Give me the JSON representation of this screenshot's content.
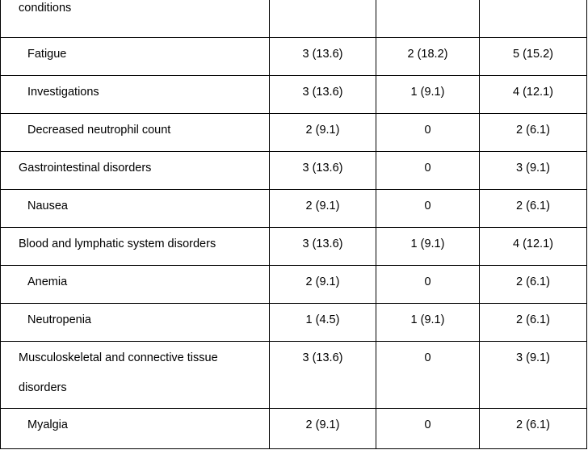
{
  "rows": [
    {
      "term": "conditions",
      "c1": "",
      "c2": "",
      "c3": ""
    },
    {
      "term": "Fatigue",
      "c1": "3 (13.6)",
      "c2": "2 (18.2)",
      "c3": "5 (15.2)"
    },
    {
      "term": "Investigations",
      "c1": "3 (13.6)",
      "c2": "1 (9.1)",
      "c3": "4 (12.1)"
    },
    {
      "term": "Decreased neutrophil count",
      "c1": "2 (9.1)",
      "c2": "0",
      "c3": "2 (6.1)"
    },
    {
      "term": "Gastrointestinal disorders",
      "c1": "3 (13.6)",
      "c2": "0",
      "c3": "3 (9.1)"
    },
    {
      "term": "Nausea",
      "c1": "2 (9.1)",
      "c2": "0",
      "c3": "2 (6.1)"
    },
    {
      "term": "Blood and lymphatic system disorders",
      "c1": "3 (13.6)",
      "c2": "1 (9.1)",
      "c3": "4 (12.1)"
    },
    {
      "term": "Anemia",
      "c1": "2 (9.1)",
      "c2": "0",
      "c3": "2 (6.1)"
    },
    {
      "term": "Neutropenia",
      "c1": "1 (4.5)",
      "c2": "1 (9.1)",
      "c3": "2 (6.1)"
    },
    {
      "term": "Musculoskeletal and connective tissue disorders",
      "c1": "3 (13.6)",
      "c2": "0",
      "c3": "3 (9.1)"
    },
    {
      "term": "Myalgia",
      "c1": "2 (9.1)",
      "c2": "0",
      "c3": "2 (6.1)"
    }
  ]
}
